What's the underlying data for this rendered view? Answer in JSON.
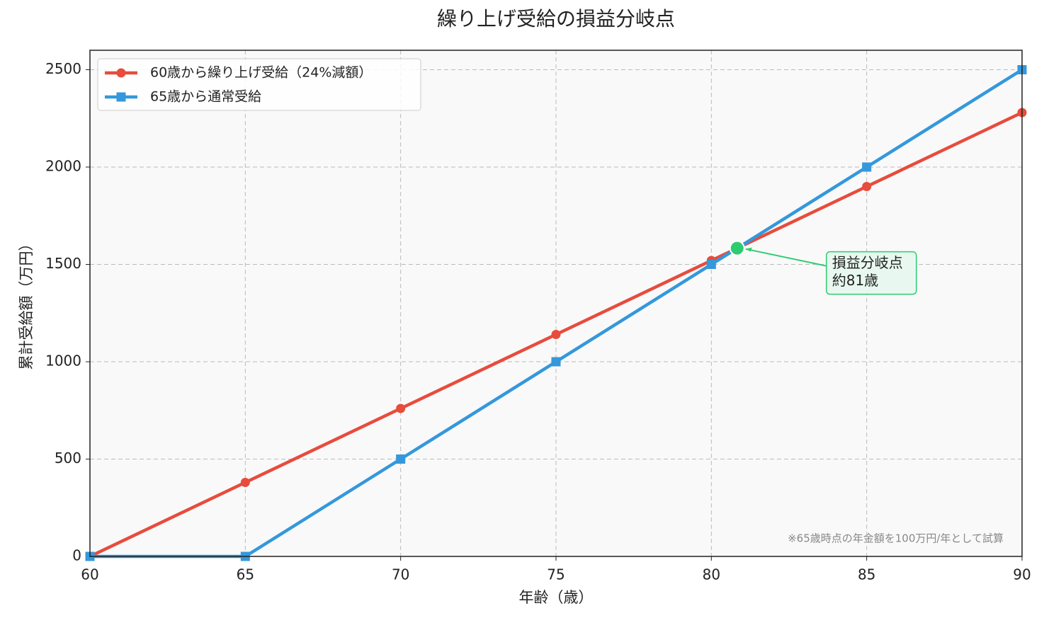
{
  "chart_data": {
    "type": "line",
    "title": "繰り上げ受給の損益分岐点",
    "xlabel": "年齢（歳）",
    "ylabel": "累計受給額（万円）",
    "x": [
      60,
      65,
      70,
      75,
      80,
      85,
      90
    ],
    "series": [
      {
        "name": "60歳から繰り上げ受給（24%減額）",
        "color": "#e74c3c",
        "marker": "circle",
        "values": [
          0,
          380,
          760,
          1140,
          1520,
          1900,
          2280
        ]
      },
      {
        "name": "65歳から通常受給",
        "color": "#3498db",
        "marker": "square",
        "values": [
          0,
          0,
          500,
          1000,
          1500,
          2000,
          2500
        ]
      }
    ],
    "xlim": [
      60,
      90
    ],
    "xticks": [
      60,
      65,
      70,
      75,
      80,
      85,
      90
    ],
    "ylim": [
      0,
      2600
    ],
    "yticks": [
      0,
      500,
      1000,
      1500,
      2000,
      2500
    ],
    "grid": true,
    "legend": "upper left",
    "annotations": [
      {
        "lines": [
          "損益分岐点",
          "約81歳"
        ],
        "x": 80.83,
        "y": 1583,
        "color": "#2ecc71"
      }
    ],
    "note": "※65歳時点の年金額を100万円/年として試算"
  }
}
